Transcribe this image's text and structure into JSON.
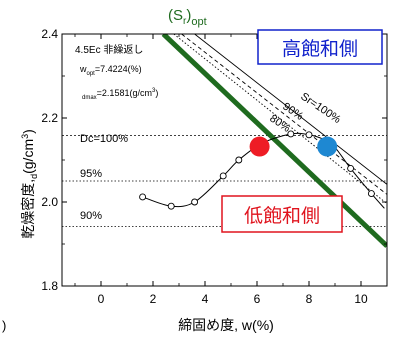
{
  "chart_data": {
    "type": "line",
    "xlabel": "締固め度, w(%)",
    "xlabel_left_fragment": ")",
    "ylabel": "乾燥密度,",
    "ylabel_rho_sub": "d",
    "ylabel_unit": "(g/cm",
    "ylabel_unit_sup": "3",
    "ylabel_unit_close": ")",
    "xlim": [
      -1.5,
      11
    ],
    "ylim": [
      1.8,
      2.4
    ],
    "x_ticks": [
      0,
      2,
      4,
      6,
      8,
      10
    ],
    "y_ticks": [
      1.8,
      2.0,
      2.2,
      2.4
    ],
    "y_tick_labels": [
      "1.8",
      "2.0",
      "2.2",
      "2.4"
    ],
    "grid": false,
    "info": {
      "line1": "4.5Ec 非繰返し",
      "wopt_prefix": "w",
      "wopt_sub": "opt",
      "wopt_value": "=7.4224(%)",
      "dmax_sub": "dmax",
      "dmax_value": "=2.1581(g/cm",
      "dmax_sup": "3",
      "dmax_close": ")"
    },
    "reference_lines": [
      {
        "label": "Dc=100%",
        "y": 2.1581
      },
      {
        "label": "95%",
        "y": 2.05
      },
      {
        "label": "90%",
        "y": 1.942
      }
    ],
    "compaction_curve": {
      "x": [
        1.6,
        2.7,
        3.6,
        4.7,
        5.3,
        6.2,
        7.3,
        8.0,
        8.6,
        9.0,
        9.6,
        10.4,
        10.9
      ],
      "y": [
        2.012,
        1.99,
        2.0,
        2.062,
        2.1,
        2.14,
        2.162,
        2.16,
        2.148,
        2.13,
        2.08,
        2.02,
        1.985
      ]
    },
    "compaction_points": {
      "x": [
        1.6,
        2.7,
        3.6,
        4.7,
        5.3,
        6.2,
        7.3,
        8.0,
        9.6,
        10.4
      ],
      "y": [
        2.012,
        1.99,
        2.0,
        2.062,
        2.1,
        2.14,
        2.162,
        2.16,
        2.08,
        2.02
      ]
    },
    "saturation_curves": [
      {
        "label": "Sr=100%",
        "style": "solid",
        "x": [
          3.6,
          11.0
        ],
        "y": [
          2.4,
          2.042
        ]
      },
      {
        "label": "90%",
        "style": "dashed",
        "x": [
          3.1,
          11.0
        ],
        "y": [
          2.4,
          2.018
        ]
      },
      {
        "label": "80%",
        "style": "dotted",
        "x": [
          2.8,
          11.0
        ],
        "y": [
          2.4,
          1.996
        ]
      }
    ],
    "opt_line": {
      "label": "(S",
      "label_sub": "r",
      "label_close": ")",
      "label_sub2": "opt",
      "color": "#1f6b1f",
      "x": [
        2.4,
        11.0
      ],
      "y": [
        2.4,
        1.895
      ]
    },
    "markers": [
      {
        "name": "red-circle",
        "x": 6.1,
        "y": 2.132,
        "color": "#ee1c25"
      },
      {
        "name": "blue-circle",
        "x": 8.7,
        "y": 2.132,
        "color": "#1e88d2"
      }
    ],
    "regions": [
      {
        "name": "high-saturation-side",
        "label": "高飽和側",
        "color": "#1122cc"
      },
      {
        "name": "low-saturation-side",
        "label": "低飽和側",
        "color": "#e0141e"
      }
    ]
  }
}
